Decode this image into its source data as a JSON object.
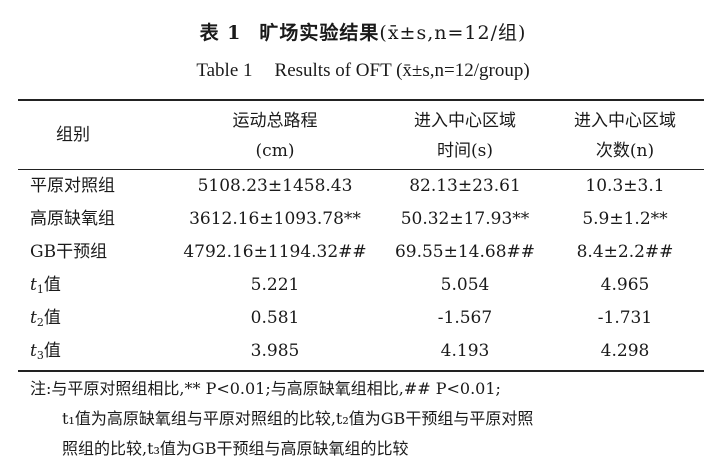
{
  "title_cn": {
    "label": "表 1",
    "text": "旷场实验结果",
    "cond": "(x̄±s,n=12/组)"
  },
  "title_en": {
    "label": "Table 1",
    "text": "Results of OFT",
    "cond": "(x̄±s,n=12/group)"
  },
  "headers": [
    {
      "line1": "组别",
      "line2": ""
    },
    {
      "line1": "运动总路程",
      "line2": "(cm)"
    },
    {
      "line1": "进入中心区域",
      "line2": "时间(s)"
    },
    {
      "line1": "进入中心区域",
      "line2": "次数(n)"
    }
  ],
  "rows": [
    {
      "group": "平原对照组",
      "v1": "5108.23±1458.43",
      "v2": "82.13±23.61",
      "v3": "10.3±3.1"
    },
    {
      "group": "高原缺氧组",
      "v1": "3612.16±1093.78**",
      "v2": "50.32±17.93**",
      "v3": "5.9±1.2**"
    },
    {
      "group": "GB干预组",
      "v1": "4792.16±1194.32##",
      "v2": "69.55±14.68##",
      "v3": "8.4±2.2##"
    },
    {
      "group_var": "t",
      "group_sub": "1",
      "group_suffix": "值",
      "v1": "5.221",
      "v2": "5.054",
      "v3": "4.965"
    },
    {
      "group_var": "t",
      "group_sub": "2",
      "group_suffix": "值",
      "v1": "0.581",
      "v2": "-1.567",
      "v3": "-1.731"
    },
    {
      "group_var": "t",
      "group_sub": "3",
      "group_suffix": "值",
      "v1": "3.985",
      "v2": "4.193",
      "v3": "4.298"
    }
  ],
  "notes": [
    "注:与平原对照组相比,** P<0.01;与高原缺氧组相比,## P<0.01;",
    "t₁值为高原缺氧组与平原对照组的比较,t₂值为GB干预组与平原对照",
    "照组的比较,t₃值为GB干预组与高原缺氧组的比较"
  ]
}
